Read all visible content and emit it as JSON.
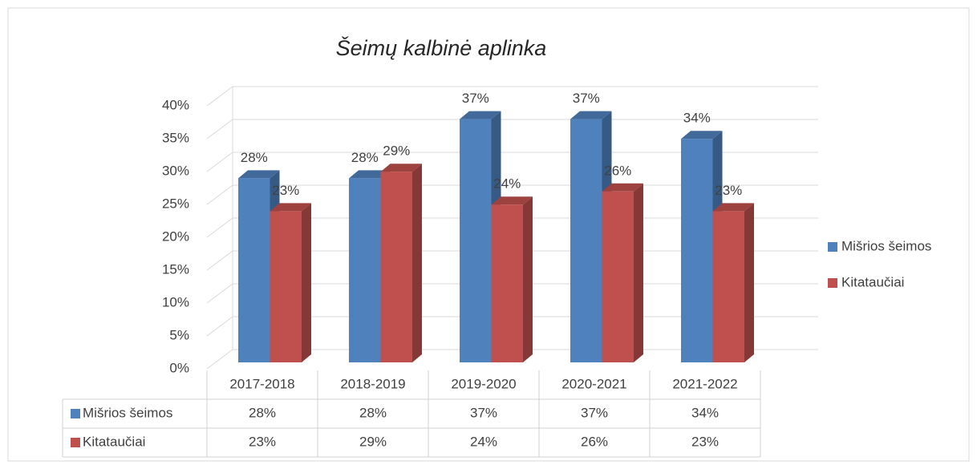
{
  "chart_data": {
    "type": "bar3d",
    "title": "Šeimų kalbinė aplinka",
    "categories": [
      "2017-2018",
      "2018-2019",
      "2019-2020",
      "2020-2021",
      "2021-2022"
    ],
    "series": [
      {
        "name": "Mišrios šeimos",
        "color": "#4f81bd",
        "values": [
          28,
          28,
          37,
          37,
          34
        ],
        "value_labels": [
          "28%",
          "28%",
          "37%",
          "37%",
          "34%"
        ]
      },
      {
        "name": "Kitataučiai",
        "color": "#c0504d",
        "values": [
          23,
          29,
          24,
          26,
          23
        ],
        "value_labels": [
          "23%",
          "29%",
          "24%",
          "26%",
          "23%"
        ]
      }
    ],
    "ylim": [
      0,
      40
    ],
    "yticks": [
      {
        "value": 0,
        "label": "0%"
      },
      {
        "value": 5,
        "label": "5%"
      },
      {
        "value": 10,
        "label": "10%"
      },
      {
        "value": 15,
        "label": "15%"
      },
      {
        "value": 20,
        "label": "20%"
      },
      {
        "value": 25,
        "label": "25%"
      },
      {
        "value": 30,
        "label": "30%"
      },
      {
        "value": 35,
        "label": "35%"
      },
      {
        "value": 40,
        "label": "40%"
      }
    ],
    "grid": true,
    "legend": "right",
    "data_table": true
  }
}
